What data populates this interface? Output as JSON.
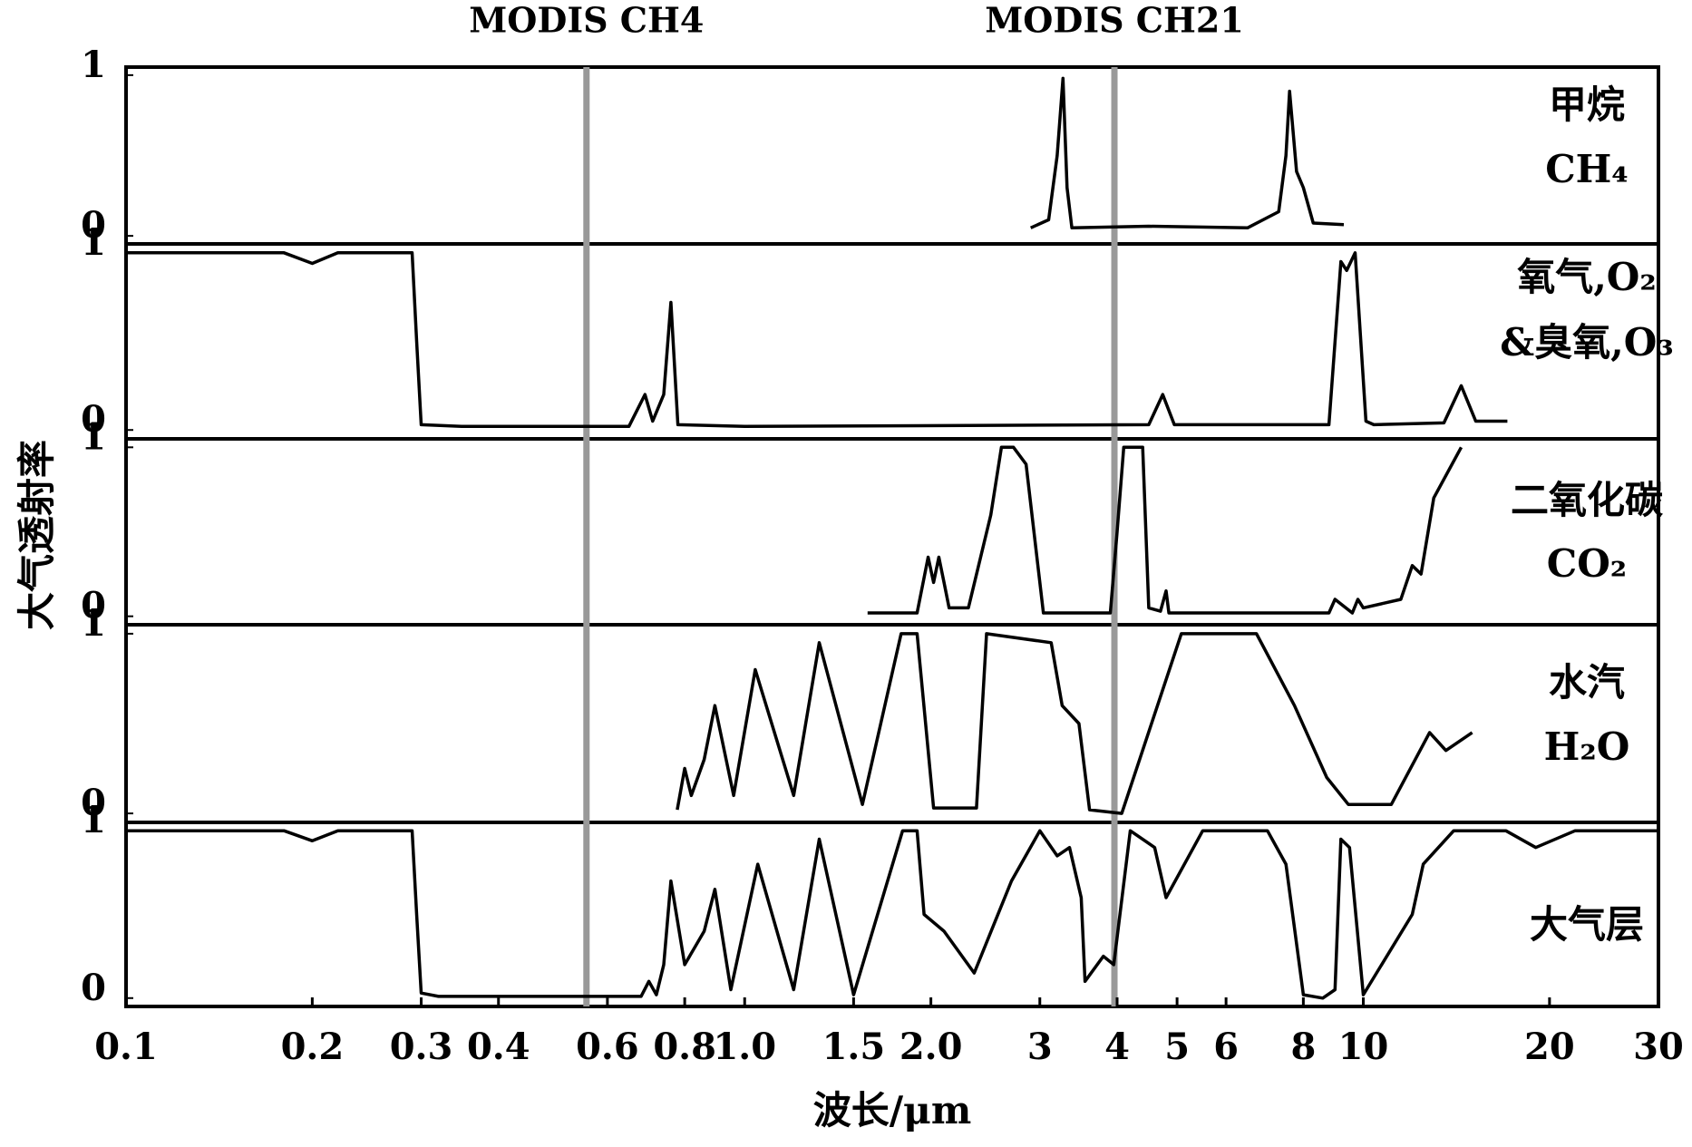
{
  "chart_data": [
    {
      "type": "line",
      "labels": [
        "甲烷",
        "CH₄"
      ],
      "ylabel": "大气透射率",
      "annotations": [
        {
          "text": "MODIS CH4",
          "x": 0.555,
          "color": "#999999"
        },
        {
          "text": "MODIS CH21",
          "x": 3.96,
          "color": "#999999"
        }
      ],
      "xlim": [
        0.1,
        30
      ],
      "log_x": true,
      "ylim": [
        -0.05,
        1.05
      ],
      "yticks": [
        0,
        1
      ],
      "series": [
        {
          "color": "#000000",
          "x": [
            2.9,
            3.1,
            3.2,
            3.27,
            3.32,
            3.38,
            4.5,
            6.5,
            7.3,
            7.5,
            7.6,
            7.8,
            8.0,
            8.3,
            9.3
          ],
          "values": [
            0.05,
            0.1,
            0.5,
            0.98,
            0.3,
            0.05,
            0.06,
            0.05,
            0.15,
            0.5,
            0.9,
            0.4,
            0.3,
            0.08,
            0.07
          ]
        }
      ]
    },
    {
      "type": "line",
      "labels": [
        "氧气,O₂",
        "&臭氧,O₃"
      ],
      "xlim": [
        0.1,
        30
      ],
      "log_x": true,
      "ylim": [
        -0.05,
        1.05
      ],
      "yticks": [
        0,
        1
      ],
      "series": [
        {
          "color": "#000000",
          "x": [
            0.1,
            0.18,
            0.2,
            0.22,
            0.29,
            0.295,
            0.3,
            0.35,
            0.65,
            0.69,
            0.71,
            0.74,
            0.76,
            0.78,
            1.0,
            4.5,
            4.74,
            4.95,
            8.8,
            9.2,
            9.4,
            9.7,
            10.1,
            10.4,
            13.5,
            14.4,
            15.2,
            17.1
          ],
          "values": [
            1.0,
            1.0,
            0.94,
            1.0,
            1.0,
            0.5,
            0.03,
            0.02,
            0.02,
            0.2,
            0.05,
            0.2,
            0.72,
            0.03,
            0.02,
            0.03,
            0.2,
            0.03,
            0.03,
            0.95,
            0.9,
            1.0,
            0.05,
            0.03,
            0.04,
            0.25,
            0.05,
            0.05
          ]
        }
      ]
    },
    {
      "type": "line",
      "labels": [
        "二氧化碳",
        "CO₂"
      ],
      "xlim": [
        0.1,
        30
      ],
      "log_x": true,
      "ylim": [
        -0.05,
        1.05
      ],
      "yticks": [
        0,
        1
      ],
      "series": [
        {
          "color": "#000000",
          "x": [
            1.58,
            1.9,
            1.98,
            2.02,
            2.06,
            2.1,
            2.14,
            2.3,
            2.5,
            2.6,
            2.72,
            2.85,
            3.04,
            3.9,
            4.0,
            4.1,
            4.4,
            4.5,
            4.7,
            4.8,
            4.85,
            8.8,
            9.0,
            9.6,
            9.8,
            10.0,
            11.5,
            12.0,
            12.4,
            13.0,
            14.4
          ],
          "values": [
            0.02,
            0.02,
            0.35,
            0.2,
            0.35,
            0.2,
            0.05,
            0.05,
            0.6,
            1.0,
            1.0,
            0.9,
            0.02,
            0.02,
            0.5,
            1.0,
            1.0,
            0.05,
            0.03,
            0.15,
            0.02,
            0.02,
            0.1,
            0.02,
            0.1,
            0.05,
            0.1,
            0.3,
            0.25,
            0.7,
            1.0
          ]
        }
      ]
    },
    {
      "type": "line",
      "labels": [
        "水汽",
        "H₂O"
      ],
      "xlim": [
        0.1,
        30
      ],
      "log_x": true,
      "ylim": [
        -0.05,
        1.05
      ],
      "yticks": [
        0,
        1
      ],
      "series": [
        {
          "color": "#000000",
          "x": [
            0.778,
            0.8,
            0.82,
            0.86,
            0.895,
            0.96,
            1.04,
            1.2,
            1.32,
            1.55,
            1.79,
            1.9,
            2.02,
            2.37,
            2.46,
            3.13,
            3.26,
            3.47,
            3.61,
            4.07,
            5.08,
            6.72,
            7.74,
            8.73,
            9.46,
            11.1,
            12.8,
            13.6,
            15.0
          ],
          "values": [
            0.02,
            0.25,
            0.1,
            0.3,
            0.6,
            0.1,
            0.8,
            0.1,
            0.95,
            0.05,
            1.0,
            1.0,
            0.03,
            0.03,
            1.0,
            0.95,
            0.6,
            0.5,
            0.02,
            0.0,
            1.0,
            1.0,
            0.6,
            0.2,
            0.05,
            0.05,
            0.45,
            0.35,
            0.45
          ]
        }
      ]
    },
    {
      "type": "line",
      "labels": [
        "大气层"
      ],
      "xlabel": "波长/μm",
      "xlim": [
        0.1,
        30
      ],
      "log_x": true,
      "ylim": [
        -0.05,
        1.05
      ],
      "yticks": [
        0,
        1
      ],
      "xticks": [
        0.1,
        0.2,
        0.3,
        0.4,
        0.6,
        0.8,
        {
          "value": 1.0,
          "label": "1.0"
        },
        1.5,
        {
          "value": 2.0,
          "label": "2.0"
        },
        3,
        4,
        5,
        6,
        8,
        10,
        20,
        30
      ],
      "series": [
        {
          "color": "#000000",
          "x": [
            0.1,
            0.18,
            0.2,
            0.22,
            0.29,
            0.295,
            0.3,
            0.32,
            0.68,
            0.7,
            0.72,
            0.74,
            0.76,
            0.8,
            0.86,
            0.895,
            0.95,
            1.05,
            1.2,
            1.32,
            1.5,
            1.8,
            1.9,
            1.95,
            2.1,
            2.35,
            2.7,
            3.0,
            3.2,
            3.35,
            3.5,
            3.55,
            3.8,
            3.95,
            4.2,
            4.6,
            4.8,
            5.5,
            7.0,
            7.5,
            8.0,
            8.6,
            9.0,
            9.2,
            9.5,
            10.0,
            12.0,
            12.5,
            14.0,
            17.0,
            19.0,
            22.0,
            30.0
          ],
          "values": [
            1.0,
            1.0,
            0.94,
            1.0,
            1.0,
            0.5,
            0.03,
            0.01,
            0.01,
            0.1,
            0.02,
            0.2,
            0.7,
            0.2,
            0.4,
            0.65,
            0.05,
            0.8,
            0.05,
            0.95,
            0.02,
            1.0,
            1.0,
            0.5,
            0.4,
            0.15,
            0.7,
            1.0,
            0.85,
            0.9,
            0.6,
            0.1,
            0.25,
            0.2,
            1.0,
            0.9,
            0.6,
            1.0,
            1.0,
            0.8,
            0.02,
            0.0,
            0.05,
            0.95,
            0.9,
            0.02,
            0.5,
            0.8,
            1.0,
            1.0,
            0.9,
            1.0,
            1.0
          ]
        }
      ]
    }
  ]
}
